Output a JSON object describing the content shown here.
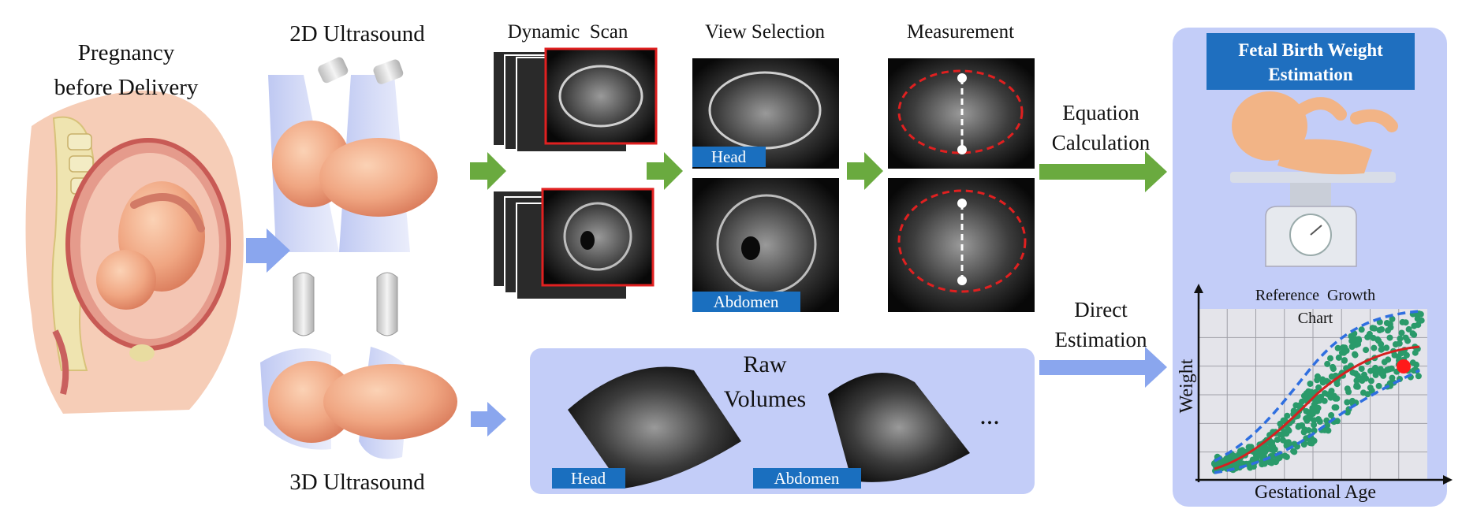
{
  "stages": {
    "pregnancy_line1": "Pregnancy",
    "pregnancy_line2": "before Delivery",
    "us2d": "2D Ultrasound",
    "us3d": "3D Ultrasound",
    "dynamic_scan": "Dynamic  Scan",
    "view_selection": "View Selection",
    "measurement": "Measurement"
  },
  "tags": {
    "head": "Head",
    "abdomen": "Abdomen",
    "raw_head": "Head",
    "raw_abdomen": "Abdomen"
  },
  "raw_volumes": {
    "line1": "Raw",
    "line2": "Volumes",
    "ellipsis": "..."
  },
  "methods": {
    "equation_line1": "Equation",
    "equation_line2": "Calculation",
    "direct_line1": "Direct",
    "direct_line2": "Estimation"
  },
  "result": {
    "title_line1": "Fetal Birth Weight",
    "title_line2": "Estimation",
    "chart_title_line1": "Reference  Growth",
    "chart_title_line2": "Chart"
  },
  "colors": {
    "green_arrow": "#6aaa3f",
    "blue_arrow": "#8aa6ee",
    "panel_bg": "#c3cdf8",
    "tag_blue": "#1a6fbf",
    "title_blue": "#1f6fbf",
    "growth_line": "#d62020",
    "band": "#2f6fe0",
    "points": "#2a9a6a",
    "highlight": "#ff1a1a"
  },
  "chart_data": {
    "type": "scatter",
    "xlabel": "Gestational Age",
    "ylabel": "Weight",
    "title": "Reference  Growth Chart",
    "grid": true,
    "series": [
      {
        "kind": "points",
        "description_note": "",
        "x": [],
        "y": []
      }
    ]
  }
}
